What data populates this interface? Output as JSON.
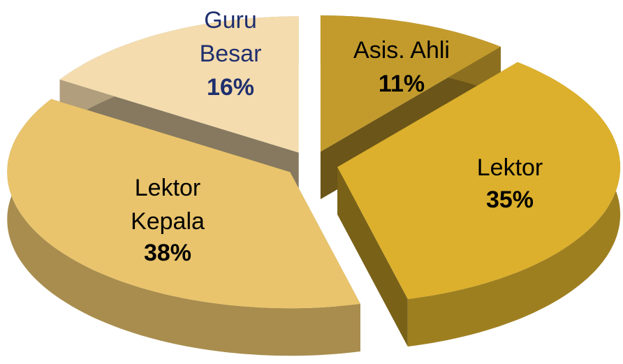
{
  "chart_data": {
    "type": "pie",
    "categories": [
      "Asis. Ahli",
      "Lektor",
      "Lektor Kepala",
      "Guru Besar"
    ],
    "values": [
      11,
      35,
      38,
      16
    ],
    "value_labels": [
      "11%",
      "35%",
      "38%",
      "16%"
    ],
    "colors": [
      "#c39b2c",
      "#dcb02c",
      "#e9c46c",
      "#f4dcae"
    ],
    "exploded": true,
    "three_d": true
  }
}
